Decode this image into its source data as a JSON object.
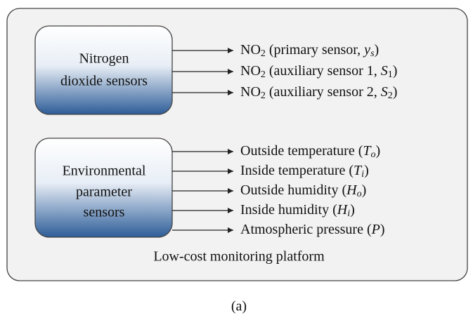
{
  "groups": [
    {
      "label_lines": [
        "Nitrogen",
        "dioxide sensors"
      ],
      "outputs": [
        [
          {
            "text": "NO"
          },
          {
            "text": "2",
            "sub": true
          },
          {
            "text": " (primary sensor, "
          },
          {
            "text": "y",
            "italic": true
          },
          {
            "text": "s",
            "sub": true,
            "italic": true
          },
          {
            "text": ")"
          }
        ],
        [
          {
            "text": "NO"
          },
          {
            "text": "2",
            "sub": true
          },
          {
            "text": " (auxiliary sensor 1, "
          },
          {
            "text": "S",
            "italic": true
          },
          {
            "text": "1",
            "sub": true
          },
          {
            "text": ")"
          }
        ],
        [
          {
            "text": "NO"
          },
          {
            "text": "2",
            "sub": true
          },
          {
            "text": " (auxiliary sensor 2, "
          },
          {
            "text": "S",
            "italic": true
          },
          {
            "text": "2",
            "sub": true
          },
          {
            "text": ")"
          }
        ]
      ]
    },
    {
      "label_lines": [
        "Environmental",
        "parameter",
        "sensors"
      ],
      "outputs": [
        [
          {
            "text": "Outside temperature ("
          },
          {
            "text": "T",
            "italic": true
          },
          {
            "text": "o",
            "sub": true,
            "italic": true
          },
          {
            "text": ")"
          }
        ],
        [
          {
            "text": "Inside temperature ("
          },
          {
            "text": "T",
            "italic": true
          },
          {
            "text": "i",
            "sub": true,
            "italic": true
          },
          {
            "text": ")"
          }
        ],
        [
          {
            "text": "Outside humidity ("
          },
          {
            "text": "H",
            "italic": true
          },
          {
            "text": "o",
            "sub": true,
            "italic": true
          },
          {
            "text": ")"
          }
        ],
        [
          {
            "text": "Inside humidity ("
          },
          {
            "text": "H",
            "italic": true
          },
          {
            "text": "i",
            "sub": true,
            "italic": true
          },
          {
            "text": ")"
          }
        ],
        [
          {
            "text": "Atmospheric pressure ("
          },
          {
            "text": "P",
            "italic": true
          },
          {
            "text": ")"
          }
        ]
      ]
    }
  ],
  "platform_label": "Low-cost monitoring platform",
  "caption": "(a)"
}
